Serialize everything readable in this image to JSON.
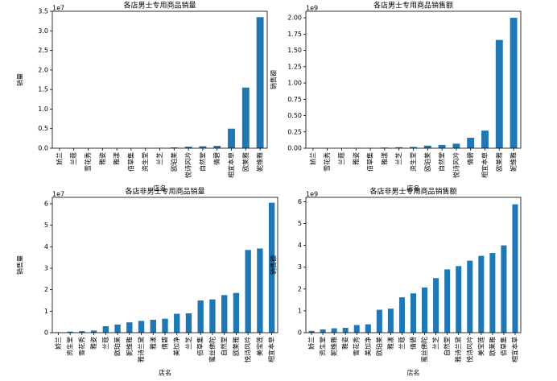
{
  "chart_data": [
    {
      "type": "bar",
      "title": "各店男士专用商品销量",
      "ylabel": "销量",
      "xlabel": "店名",
      "offset_label": "1e7",
      "color": "#1f77b4",
      "categories": [
        "娇兰",
        "兰蔻",
        "雪花秀",
        "雅姿",
        "雅漾",
        "佰草集",
        "资生堂",
        "兰芝",
        "欧珀莱",
        "悦诗风吟",
        "自然堂",
        "倩碧",
        "相宜本草",
        "欧莱雅",
        "妮维雅"
      ],
      "values": [
        0.001,
        0.001,
        0.001,
        0.002,
        0.003,
        0.004,
        0.005,
        0.01,
        0.02,
        0.04,
        0.05,
        0.06,
        0.5,
        1.55,
        3.35
      ],
      "ylim": [
        0,
        3.5
      ],
      "yticks": [
        {
          "value": 0,
          "label": "0.0"
        },
        0.5,
        {
          "value": 1,
          "label": "1.0"
        },
        1.5,
        {
          "value": 2,
          "label": "2.0"
        },
        2.5,
        {
          "value": 3,
          "label": "3.0"
        },
        3.5
      ]
    },
    {
      "type": "bar",
      "title": "各店男士专用商品销售额",
      "ylabel": "销售额",
      "xlabel": "店名",
      "offset_label": "1e9",
      "color": "#1f77b4",
      "categories": [
        "娇兰",
        "雪花秀",
        "兰蔻",
        "雅姿",
        "佰草集",
        "雅漾",
        "兰芝",
        "资生堂",
        "欧珀莱",
        "自然堂",
        "悦诗风吟",
        "倩碧",
        "相宜本草",
        "欧莱雅",
        "妮维雅"
      ],
      "values": [
        0.001,
        0.002,
        0.003,
        0.004,
        0.005,
        0.01,
        0.015,
        0.02,
        0.04,
        0.05,
        0.07,
        0.16,
        0.27,
        1.66,
        2.0
      ],
      "ylim": [
        0,
        2.1
      ],
      "yticks": [
        {
          "value": 0,
          "label": "0.00"
        },
        0.25,
        {
          "value": 0.5,
          "label": "0.50"
        },
        0.75,
        {
          "value": 1,
          "label": "1.00"
        },
        1.25,
        {
          "value": 1.5,
          "label": "1.50"
        },
        1.75,
        {
          "value": 2,
          "label": "2.00"
        }
      ]
    },
    {
      "type": "bar",
      "title": "各店非男士专用商品销量",
      "ylabel": "销售量",
      "xlabel": "店名",
      "offset_label": "1e7",
      "color": "#1f77b4",
      "categories": [
        "娇兰",
        "资生堂",
        "雪花秀",
        "雅姿",
        "兰蔻",
        "欧珀莱",
        "妮维雅",
        "雅诗兰黛",
        "雅漾",
        "倩碧",
        "美加净",
        "兰芝",
        "佰草集",
        "蜜丝佛陀",
        "自然堂",
        "欧莱雅",
        "悦诗风吟",
        "美宝莲",
        "相宜本草"
      ],
      "values": [
        0.02,
        0.05,
        0.07,
        0.1,
        0.3,
        0.38,
        0.48,
        0.55,
        0.6,
        0.65,
        0.88,
        0.9,
        1.5,
        1.55,
        1.75,
        1.85,
        3.85,
        3.92,
        6.05
      ],
      "ylim": [
        0,
        6.3
      ],
      "yticks": [
        0,
        1,
        2,
        3,
        4,
        5,
        6
      ]
    },
    {
      "type": "bar",
      "title": "各店非男士专用商品销售额",
      "ylabel": "销售额",
      "xlabel": "店名",
      "offset_label": "1e9",
      "color": "#1f77b4",
      "categories": [
        "娇兰",
        "资生堂",
        "妮维雅",
        "雅姿",
        "雪花秀",
        "美加净",
        "欧珀莱",
        "雅漾",
        "兰蔻",
        "倩碧",
        "蜜丝佛陀",
        "兰芝",
        "自然堂",
        "雅诗兰黛",
        "悦诗风吟",
        "美宝莲",
        "欧莱雅",
        "佰草集",
        "相宜本草"
      ],
      "values": [
        0.08,
        0.15,
        0.2,
        0.22,
        0.35,
        0.38,
        1.05,
        1.1,
        1.62,
        1.8,
        2.07,
        2.5,
        2.9,
        3.05,
        3.3,
        3.52,
        3.65,
        4.0,
        5.88
      ],
      "ylim": [
        0,
        6.2
      ],
      "yticks": [
        0,
        1,
        2,
        3,
        4,
        5,
        6
      ]
    }
  ]
}
